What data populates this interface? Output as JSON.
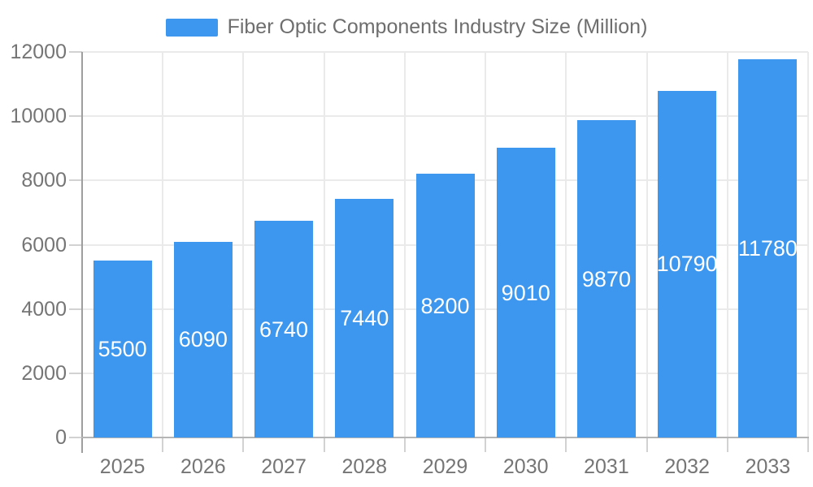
{
  "chart_data": {
    "type": "bar",
    "title": "Fiber Optic Components Industry Size (Million)",
    "categories": [
      "2025",
      "2026",
      "2027",
      "2028",
      "2029",
      "2030",
      "2031",
      "2032",
      "2033"
    ],
    "values": [
      5500,
      6090,
      6740,
      7440,
      8200,
      9010,
      9870,
      10790,
      11780
    ],
    "series": [
      {
        "name": "Fiber Optic Components Industry Size (Million)",
        "values": [
          5500,
          6090,
          6740,
          7440,
          8200,
          9010,
          9870,
          10790,
          11780
        ]
      }
    ],
    "xlabel": "",
    "ylabel": "",
    "ylim": [
      0,
      12000
    ],
    "yticks": [
      0,
      2000,
      4000,
      6000,
      8000,
      10000,
      12000
    ],
    "grid": true,
    "legend_position": "top-center",
    "value_label_position": "inside-middle",
    "colors": {
      "bar": "#3D97EE",
      "value_label": "#FFFFFF",
      "axis_text": "#757575",
      "legend_text": "#6E6E6E",
      "gridline": "#EAEAEA",
      "y_axis_line": "#9E9E9E",
      "x_axis_line": "#B5B5B5",
      "axis_tick": "#D2D2D2",
      "background": "#FFFFFF"
    }
  }
}
